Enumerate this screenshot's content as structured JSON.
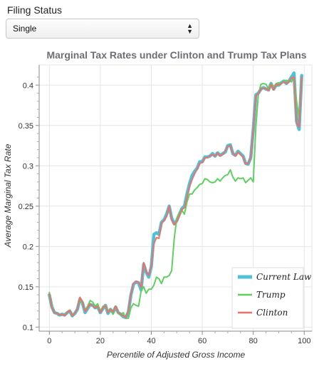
{
  "filing_status": {
    "label": "Filing Status",
    "selected": "Single"
  },
  "chart_data": {
    "type": "line",
    "title": "Marginal Tax Rates under Clinton and Trump Tax Plans",
    "xlabel": "Percentile of Adjusted Gross Income",
    "ylabel": "Average Marginal Tax Rate",
    "xlim": [
      -4,
      103
    ],
    "ylim": [
      0.095,
      0.425
    ],
    "xticks": [
      0,
      20,
      40,
      60,
      80,
      100
    ],
    "yticks": [
      0.1,
      0.15,
      0.2,
      0.25,
      0.3,
      0.35,
      0.4
    ],
    "grid": true,
    "legend_position": "bottom-right",
    "x": [
      0,
      1,
      2,
      3,
      4,
      5,
      6,
      7,
      8,
      9,
      10,
      11,
      12,
      13,
      14,
      15,
      16,
      17,
      18,
      19,
      20,
      21,
      22,
      23,
      24,
      25,
      26,
      27,
      28,
      29,
      30,
      31,
      32,
      33,
      34,
      35,
      36,
      37,
      38,
      39,
      40,
      41,
      42,
      43,
      44,
      45,
      46,
      47,
      48,
      49,
      50,
      51,
      52,
      53,
      54,
      55,
      56,
      57,
      58,
      59,
      60,
      61,
      62,
      63,
      64,
      65,
      66,
      67,
      68,
      69,
      70,
      71,
      72,
      73,
      74,
      75,
      76,
      77,
      78,
      79,
      80,
      81,
      82,
      83,
      84,
      85,
      86,
      87,
      88,
      89,
      90,
      91,
      92,
      93,
      94,
      95,
      96,
      97,
      98,
      99
    ],
    "series": [
      {
        "name": "Current Law",
        "color": "#4fc1d9",
        "values": [
          0.14,
          0.125,
          0.118,
          0.117,
          0.115,
          0.116,
          0.115,
          0.118,
          0.12,
          0.114,
          0.117,
          0.122,
          0.135,
          0.13,
          0.118,
          0.123,
          0.128,
          0.127,
          0.124,
          0.125,
          0.118,
          0.123,
          0.127,
          0.117,
          0.122,
          0.118,
          0.125,
          0.118,
          0.116,
          0.113,
          0.112,
          0.119,
          0.14,
          0.153,
          0.156,
          0.155,
          0.146,
          0.178,
          0.168,
          0.162,
          0.175,
          0.215,
          0.217,
          0.215,
          0.23,
          0.233,
          0.24,
          0.25,
          0.235,
          0.228,
          0.232,
          0.24,
          0.247,
          0.25,
          0.265,
          0.278,
          0.288,
          0.293,
          0.297,
          0.305,
          0.305,
          0.311,
          0.311,
          0.312,
          0.315,
          0.312,
          0.316,
          0.313,
          0.315,
          0.317,
          0.325,
          0.326,
          0.315,
          0.313,
          0.318,
          0.315,
          0.312,
          0.303,
          0.302,
          0.31,
          0.345,
          0.388,
          0.39,
          0.395,
          0.397,
          0.395,
          0.394,
          0.402,
          0.395,
          0.4,
          0.4,
          0.403,
          0.405,
          0.402,
          0.405,
          0.41,
          0.415,
          0.355,
          0.345,
          0.412
        ]
      },
      {
        "name": "Trump",
        "color": "#5fd05f",
        "values": [
          0.143,
          0.126,
          0.118,
          0.117,
          0.116,
          0.116,
          0.115,
          0.119,
          0.121,
          0.115,
          0.117,
          0.123,
          0.134,
          0.129,
          0.121,
          0.126,
          0.133,
          0.131,
          0.126,
          0.129,
          0.119,
          0.126,
          0.125,
          0.118,
          0.123,
          0.116,
          0.126,
          0.117,
          0.115,
          0.118,
          0.111,
          0.111,
          0.124,
          0.129,
          0.127,
          0.126,
          0.145,
          0.15,
          0.142,
          0.147,
          0.147,
          0.152,
          0.162,
          0.16,
          0.154,
          0.162,
          0.162,
          0.164,
          0.17,
          0.21,
          0.235,
          0.242,
          0.245,
          0.24,
          0.255,
          0.265,
          0.265,
          0.27,
          0.273,
          0.277,
          0.278,
          0.284,
          0.283,
          0.28,
          0.279,
          0.28,
          0.284,
          0.281,
          0.285,
          0.288,
          0.289,
          0.295,
          0.286,
          0.281,
          0.285,
          0.284,
          0.285,
          0.279,
          0.282,
          0.285,
          0.28,
          0.348,
          0.388,
          0.401,
          0.402,
          0.401,
          0.395,
          0.402,
          0.398,
          0.402,
          0.403,
          0.402,
          0.405,
          0.406,
          0.405,
          0.404,
          0.41,
          0.38,
          0.358,
          0.41
        ]
      },
      {
        "name": "Clinton",
        "color": "#f07068",
        "values": [
          0.141,
          0.124,
          0.118,
          0.117,
          0.115,
          0.116,
          0.114,
          0.118,
          0.121,
          0.114,
          0.117,
          0.123,
          0.137,
          0.131,
          0.119,
          0.124,
          0.129,
          0.126,
          0.124,
          0.126,
          0.118,
          0.124,
          0.127,
          0.118,
          0.122,
          0.119,
          0.126,
          0.118,
          0.116,
          0.114,
          0.112,
          0.12,
          0.141,
          0.154,
          0.157,
          0.156,
          0.149,
          0.18,
          0.169,
          0.164,
          0.176,
          0.203,
          0.211,
          0.21,
          0.229,
          0.232,
          0.237,
          0.25,
          0.233,
          0.227,
          0.231,
          0.238,
          0.246,
          0.248,
          0.261,
          0.274,
          0.283,
          0.29,
          0.296,
          0.303,
          0.304,
          0.31,
          0.31,
          0.312,
          0.314,
          0.312,
          0.316,
          0.312,
          0.314,
          0.318,
          0.324,
          0.325,
          0.316,
          0.312,
          0.317,
          0.314,
          0.311,
          0.302,
          0.303,
          0.31,
          0.344,
          0.387,
          0.389,
          0.396,
          0.396,
          0.396,
          0.393,
          0.401,
          0.394,
          0.401,
          0.4,
          0.402,
          0.404,
          0.402,
          0.404,
          0.409,
          0.41,
          0.353,
          0.348,
          0.41
        ]
      }
    ]
  }
}
